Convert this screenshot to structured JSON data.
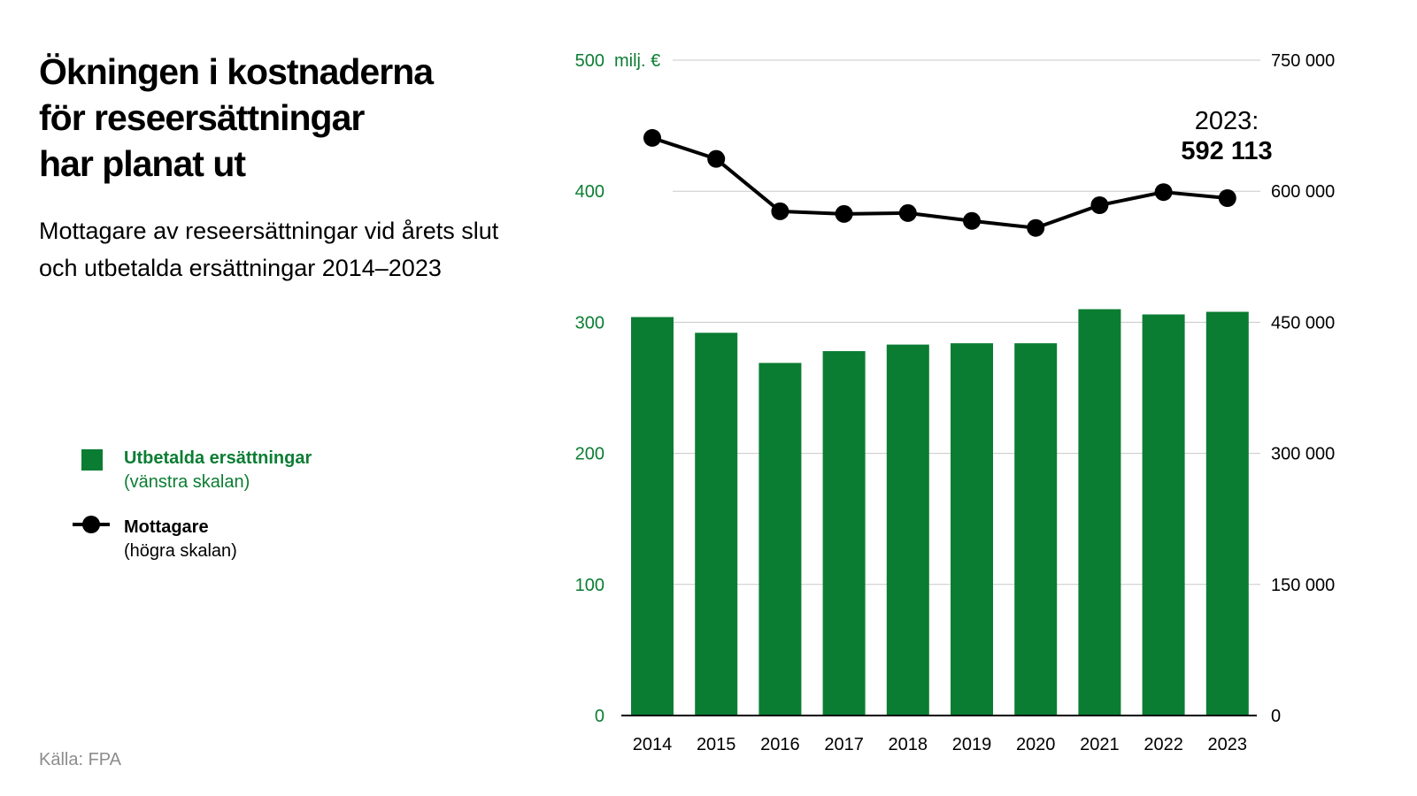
{
  "title_lines": [
    "Ökningen i kostnaderna",
    "för reseersättningar",
    "har planat ut"
  ],
  "subtitle_lines": [
    "Mottagare av reseersättningar vid årets slut",
    "och utbetalda ersättningar 2014–2023"
  ],
  "source": "Källa: FPA",
  "colors": {
    "bar": "#0b7d33",
    "line": "#000000",
    "grid": "#c8c8c8",
    "left_axis_text": "#0b7d33",
    "source_text": "#8c8c8c"
  },
  "legend": [
    {
      "name": "Utbetalda ersättningar",
      "scale": "(vänstra skalan)",
      "kind": "bar-swatch"
    },
    {
      "name": "Mottagare",
      "scale": "(högra skalan)",
      "kind": "line-marker"
    }
  ],
  "chart_data": {
    "type": "bar+line",
    "categories": [
      "2014",
      "2015",
      "2016",
      "2017",
      "2018",
      "2019",
      "2020",
      "2021",
      "2022",
      "2023"
    ],
    "series": [
      {
        "name": "Utbetalda ersättningar",
        "type": "bar",
        "axis": "left",
        "values": [
          304,
          292,
          269,
          278,
          283,
          284,
          284,
          310,
          306,
          308
        ]
      },
      {
        "name": "Mottagare",
        "type": "line",
        "axis": "right",
        "values": [
          661000,
          637000,
          577000,
          574000,
          575000,
          566000,
          558000,
          584000,
          599000,
          592113
        ]
      }
    ],
    "left_axis": {
      "unit": "milj. €",
      "ticks": [
        "0",
        "100",
        "200",
        "300",
        "400",
        "500"
      ],
      "range": [
        0,
        500
      ]
    },
    "right_axis": {
      "ticks": [
        "0",
        "150 000",
        "300 000",
        "450 000",
        "600 000",
        "750 000"
      ],
      "range": [
        0,
        750000
      ]
    },
    "annotation": {
      "year_label": "2023:",
      "value_label": "592 113"
    },
    "grid": true,
    "legend_position": "left"
  }
}
